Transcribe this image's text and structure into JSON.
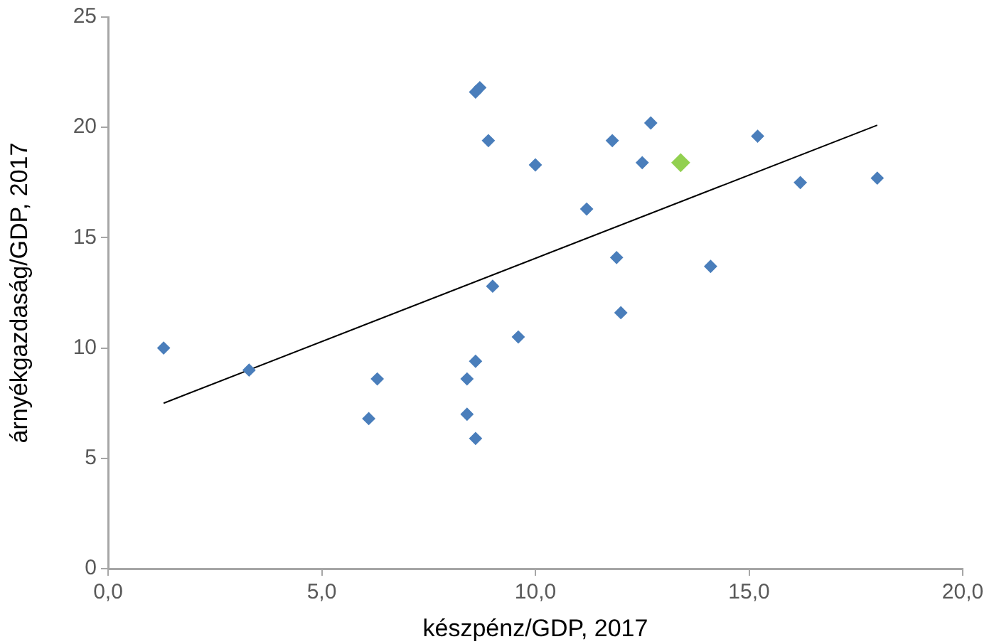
{
  "chart_data": {
    "type": "scatter",
    "xlabel": "készpénz/GDP, 2017",
    "ylabel": "árnyékgazdaság/GDP, 2017",
    "marker": "diamond",
    "grid": false,
    "legend": false,
    "xlim": [
      0,
      20
    ],
    "xticks": [
      {
        "value": 0,
        "label": "0,0"
      },
      {
        "value": 5,
        "label": "5,0"
      },
      {
        "value": 10,
        "label": "10,0"
      },
      {
        "value": 15,
        "label": "15,0"
      },
      {
        "value": 20,
        "label": "20,0"
      }
    ],
    "ylim": [
      0,
      25
    ],
    "yticks": [
      0,
      5,
      10,
      15,
      20,
      25
    ],
    "series": [
      {
        "color": "#4a7ebb",
        "x": [
          1.3,
          3.3,
          6.3,
          6.1,
          8.4,
          8.4,
          8.6,
          8.6,
          9.0,
          9.6,
          8.6,
          8.7,
          8.9,
          10.0,
          11.2,
          11.8,
          12.7,
          12.5,
          15.2,
          16.2,
          18.0,
          11.9,
          14.1,
          12.0
        ],
        "values": [
          10.0,
          9.0,
          8.6,
          6.8,
          8.6,
          7.0,
          5.9,
          9.4,
          12.8,
          10.5,
          21.6,
          21.8,
          19.4,
          18.3,
          16.3,
          19.4,
          20.2,
          18.4,
          19.6,
          17.5,
          17.7,
          14.1,
          13.7,
          11.6
        ]
      },
      {
        "color": "#92d050",
        "x": [
          13.4
        ],
        "values": [
          18.4
        ]
      },
      {
        "type": "line",
        "color": "#000000",
        "marker": "none",
        "x": [
          1.3,
          18.0
        ],
        "values": [
          7.5,
          20.1
        ]
      }
    ]
  }
}
